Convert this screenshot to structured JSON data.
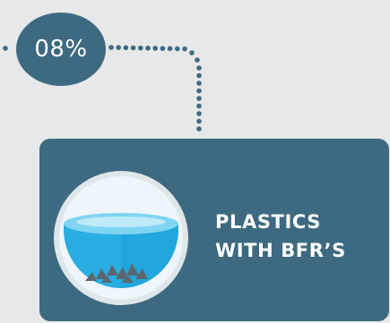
{
  "badge": {
    "text": "08%"
  },
  "card": {
    "label_line1": "PLASTICS",
    "label_line2": "WITH BFR’S"
  },
  "colors": {
    "background": "#e7e8e9",
    "teal": "#3d6a80",
    "ring": "#dfe6ea",
    "bowl_inner": "#eef6fb",
    "water": "#29aee3",
    "water_dark": "#1599d1",
    "water_top": "#7fd4f2",
    "particles": "#5b6770"
  },
  "icons": {
    "bowl": "bowl-of-water-with-particles-icon"
  }
}
